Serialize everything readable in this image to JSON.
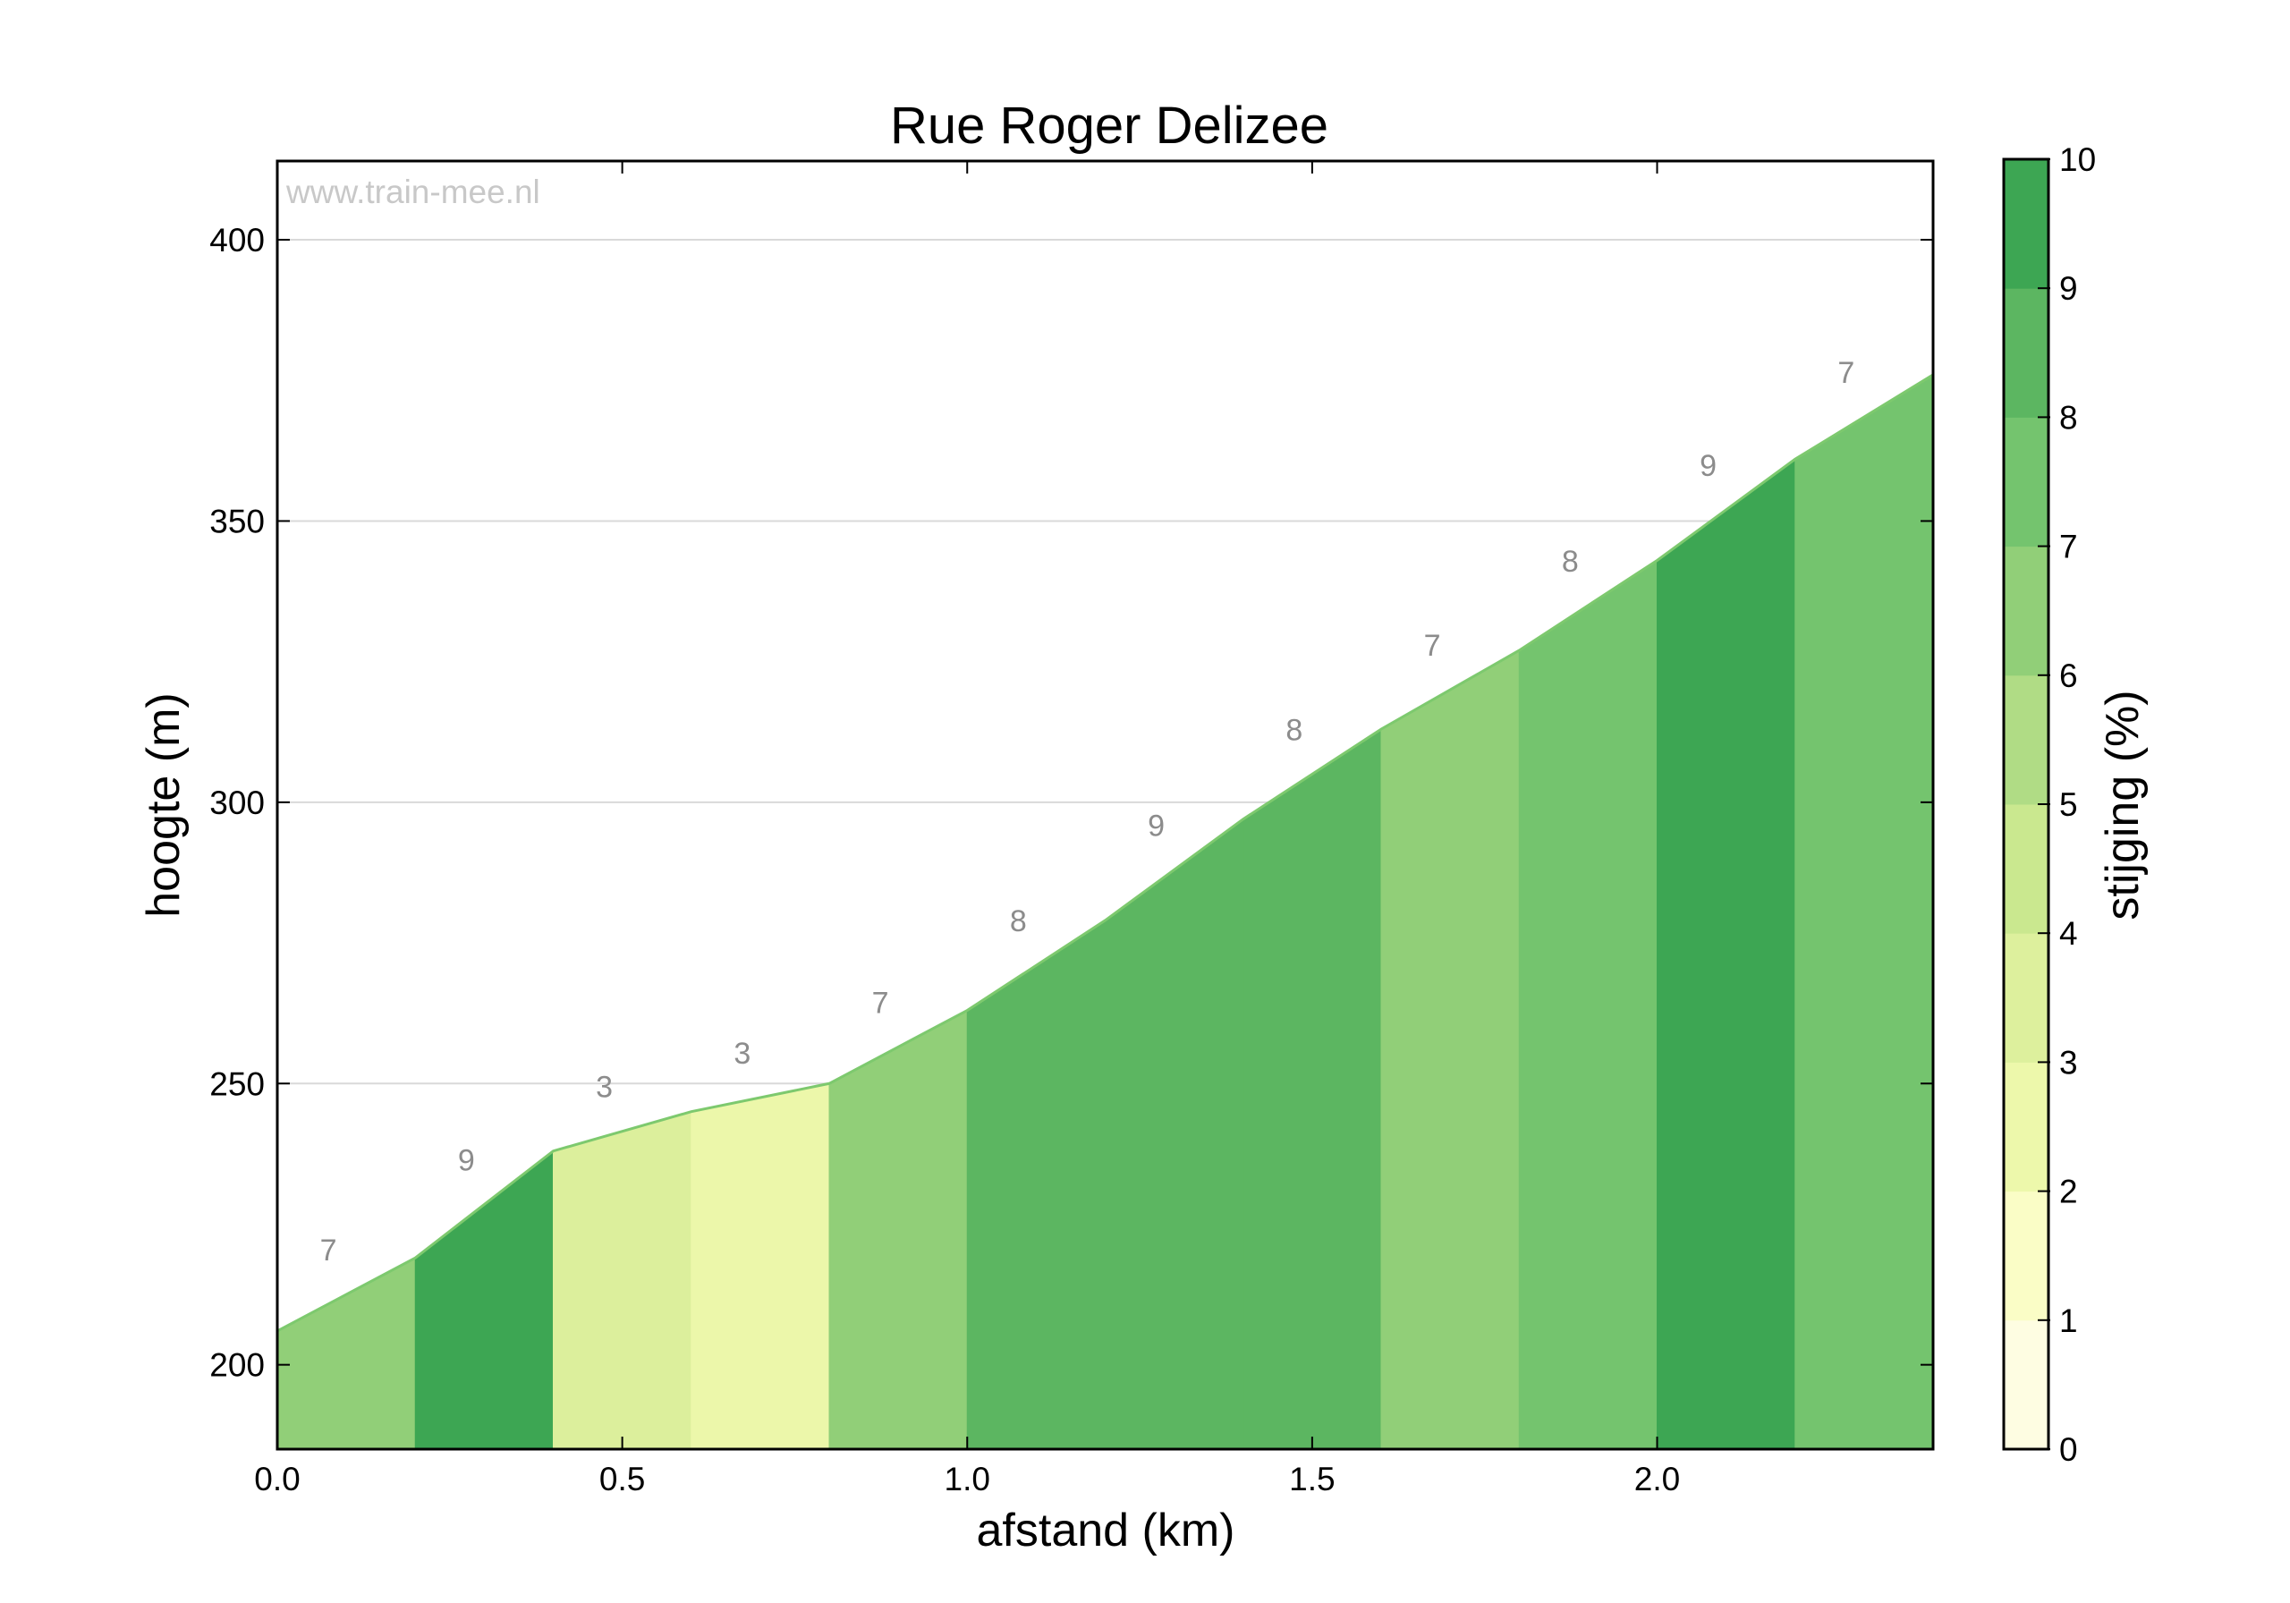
{
  "chart_data": {
    "type": "area",
    "title": "Rue Roger Delizee",
    "xlabel": "afstand (km)",
    "ylabel": "hoogte (m)",
    "xlim": [
      0.0,
      2.4
    ],
    "ylim": [
      185,
      414
    ],
    "x_ticks": [
      "0.0",
      "0.5",
      "1.0",
      "1.5",
      "2.0"
    ],
    "y_ticks": [
      "200",
      "250",
      "300",
      "350",
      "400"
    ],
    "grid": "horizontal",
    "watermark": "www.train-mee.nl",
    "points": [
      {
        "x": 0.0,
        "y": 206
      },
      {
        "x": 0.2,
        "y": 219
      },
      {
        "x": 0.4,
        "y": 238
      },
      {
        "x": 0.6,
        "y": 245
      },
      {
        "x": 0.8,
        "y": 250
      },
      {
        "x": 1.0,
        "y": 263
      },
      {
        "x": 1.2,
        "y": 279
      },
      {
        "x": 1.4,
        "y": 297
      },
      {
        "x": 1.6,
        "y": 313
      },
      {
        "x": 1.8,
        "y": 327
      },
      {
        "x": 2.0,
        "y": 343
      },
      {
        "x": 2.2,
        "y": 361
      },
      {
        "x": 2.4,
        "y": 376
      }
    ],
    "segments": [
      {
        "x0": 0.0,
        "x1": 0.2,
        "gradient_label": "7"
      },
      {
        "x0": 0.2,
        "x1": 0.4,
        "gradient_label": "9"
      },
      {
        "x0": 0.4,
        "x1": 0.6,
        "gradient_label": "3"
      },
      {
        "x0": 0.6,
        "x1": 0.8,
        "gradient_label": "3"
      },
      {
        "x0": 0.8,
        "x1": 1.0,
        "gradient_label": "7"
      },
      {
        "x0": 1.0,
        "x1": 1.2,
        "gradient_label": "8"
      },
      {
        "x0": 1.2,
        "x1": 1.4,
        "gradient_label": "9"
      },
      {
        "x0": 1.4,
        "x1": 1.6,
        "gradient_label": "8"
      },
      {
        "x0": 1.6,
        "x1": 1.8,
        "gradient_label": "7"
      },
      {
        "x0": 1.8,
        "x1": 2.0,
        "gradient_label": "8"
      },
      {
        "x0": 2.0,
        "x1": 2.2,
        "gradient_label": "9"
      },
      {
        "x0": 2.2,
        "x1": 2.4,
        "gradient_label": "7"
      }
    ],
    "segment_colors": {
      "3": "#dcef9c",
      "3b": "#ecf7aa",
      "7": "#91cf78",
      "8": "#5cb661",
      "8b": "#74c46e",
      "9": "#3da653"
    },
    "colorbar": {
      "label": "stijging (%)",
      "range": [
        0,
        10
      ],
      "ticks": [
        "0",
        "1",
        "2",
        "3",
        "4",
        "5",
        "6",
        "7",
        "8",
        "9",
        "10"
      ],
      "colors": [
        "#fefde2",
        "#fafdc6",
        "#edf8ab",
        "#ddf09d",
        "#cae88f",
        "#b0dc85",
        "#91cf78",
        "#74c46e",
        "#5cb661",
        "#3da653"
      ]
    }
  }
}
